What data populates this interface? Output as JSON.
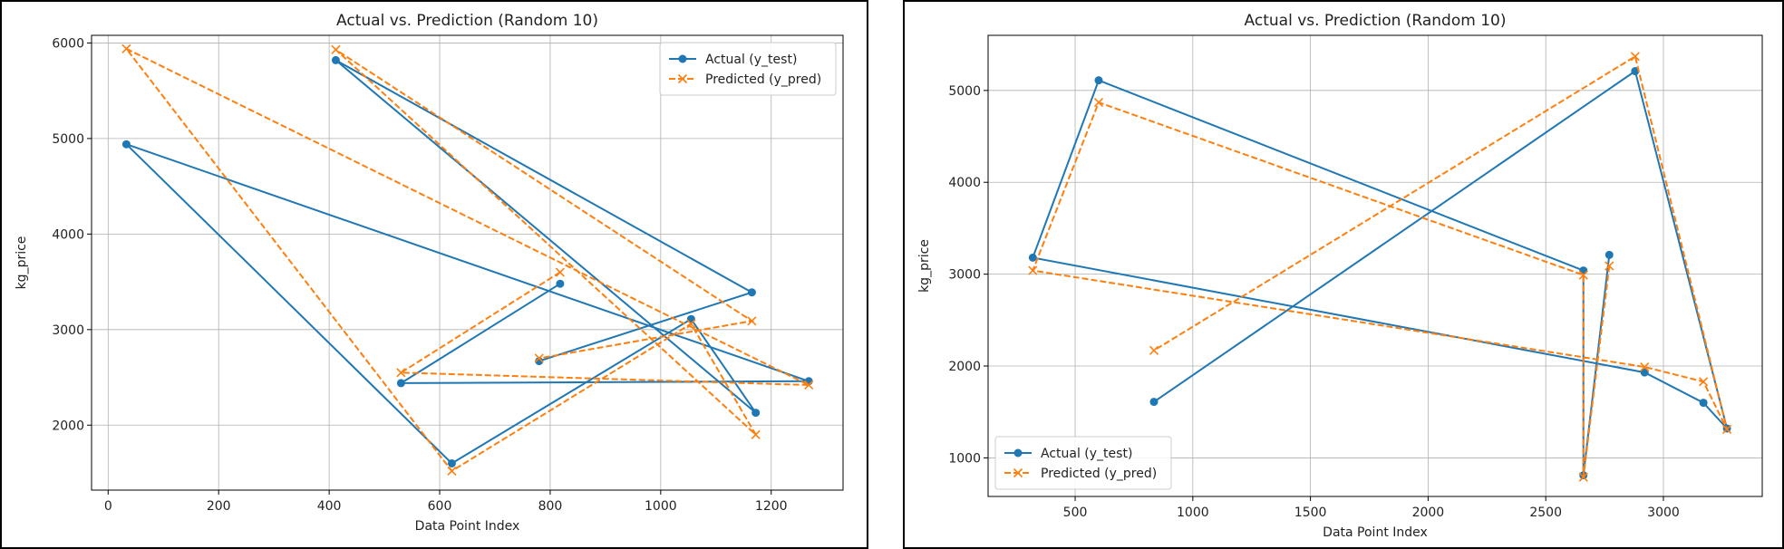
{
  "chart_data": [
    {
      "type": "line",
      "title": "Actual vs. Prediction (Random 10)",
      "xlabel": "Data Point Index",
      "ylabel": "kg_price",
      "xlim": [
        -30,
        1330
      ],
      "ylim": [
        1320,
        6080
      ],
      "xticks": [
        0,
        200,
        400,
        600,
        800,
        1000,
        1200
      ],
      "yticks": [
        2000,
        3000,
        4000,
        5000,
        6000
      ],
      "grid": true,
      "legend": "top-right",
      "series": [
        {
          "name": "Actual (y_test)",
          "color": "#1f77b4",
          "linestyle": "solid",
          "marker": "circle",
          "x": [
            818,
            530,
            1268,
            33,
            622,
            1055,
            1172,
            412,
            1165,
            780
          ],
          "y": [
            3480,
            2440,
            2460,
            4940,
            1600,
            3110,
            2130,
            5820,
            3390,
            2670
          ]
        },
        {
          "name": "Predicted (y_pred)",
          "color": "#ff7f0e",
          "linestyle": "dashed",
          "marker": "x",
          "x": [
            818,
            530,
            1268,
            33,
            622,
            1055,
            1172,
            412,
            1165,
            780
          ],
          "y": [
            3600,
            2550,
            2420,
            5940,
            1520,
            3060,
            1900,
            5930,
            3090,
            2700
          ]
        }
      ]
    },
    {
      "type": "line",
      "title": "Actual vs. Prediction (Random 10)",
      "xlabel": "Data Point Index",
      "ylabel": "kg_price",
      "xlim": [
        130,
        3420
      ],
      "ylim": [
        580,
        5600
      ],
      "xticks": [
        500,
        1000,
        1500,
        2000,
        2500,
        3000
      ],
      "yticks": [
        1000,
        2000,
        3000,
        4000,
        5000
      ],
      "grid": true,
      "legend": "bottom-left",
      "series": [
        {
          "name": "Actual (y_test)",
          "color": "#1f77b4",
          "linestyle": "solid",
          "marker": "circle",
          "x": [
            2770,
            2660,
            2660,
            600,
            320,
            2920,
            3170,
            3270,
            2880,
            835
          ],
          "y": [
            3210,
            810,
            3040,
            5110,
            3180,
            1930,
            1600,
            1320,
            5210,
            1610
          ]
        },
        {
          "name": "Predicted (y_pred)",
          "color": "#ff7f0e",
          "linestyle": "dashed",
          "marker": "x",
          "x": [
            2770,
            2660,
            2660,
            600,
            320,
            2920,
            3170,
            3270,
            2880,
            835
          ],
          "y": [
            3090,
            790,
            2990,
            4870,
            3040,
            1990,
            1830,
            1310,
            5370,
            2170
          ]
        }
      ]
    }
  ]
}
